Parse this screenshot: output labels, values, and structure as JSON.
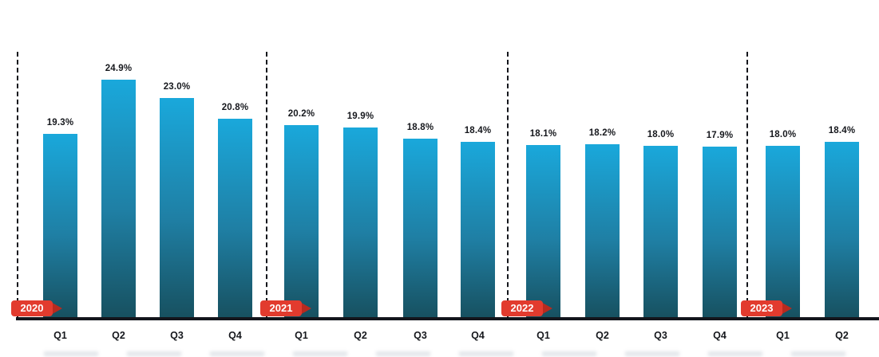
{
  "chart_data": {
    "type": "bar",
    "title": "",
    "xlabel": "",
    "ylabel": "",
    "unit": "%",
    "ylim": [
      0,
      25
    ],
    "grid": false,
    "legend": false,
    "groups": [
      {
        "year": "2020",
        "quarters": [
          "Q1",
          "Q2",
          "Q3",
          "Q4"
        ],
        "values": [
          19.3,
          24.9,
          23.0,
          20.8
        ],
        "labels": [
          "19.3%",
          "24.9%",
          "23.0%",
          "20.8%"
        ]
      },
      {
        "year": "2021",
        "quarters": [
          "Q1",
          "Q2",
          "Q3",
          "Q4"
        ],
        "values": [
          20.2,
          19.9,
          18.8,
          18.4
        ],
        "labels": [
          "20.2%",
          "19.9%",
          "18.8%",
          "18.4%"
        ]
      },
      {
        "year": "2022",
        "quarters": [
          "Q1",
          "Q2",
          "Q3",
          "Q4"
        ],
        "values": [
          18.1,
          18.2,
          18.0,
          17.9
        ],
        "labels": [
          "18.1%",
          "18.2%",
          "18.0%",
          "17.9%"
        ]
      },
      {
        "year": "2023",
        "quarters": [
          "Q1",
          "Q2"
        ],
        "values": [
          18.0,
          18.4
        ],
        "labels": [
          "18.0%",
          "18.4%"
        ]
      }
    ]
  },
  "colors": {
    "background": "#ffffff",
    "bar_gradient_top": "#1aa8db",
    "bar_gradient_mid": "#1f7fa4",
    "bar_gradient_bottom": "#17505f",
    "axis_line": "#14161c",
    "separator_dash": "#14161c",
    "year_tag_body": "#e23b2e",
    "year_tag_tip": "#b92a1f",
    "year_tag_text": "#ffffff",
    "value_label_text": "#16181d",
    "quarter_label_text": "#16181d"
  }
}
